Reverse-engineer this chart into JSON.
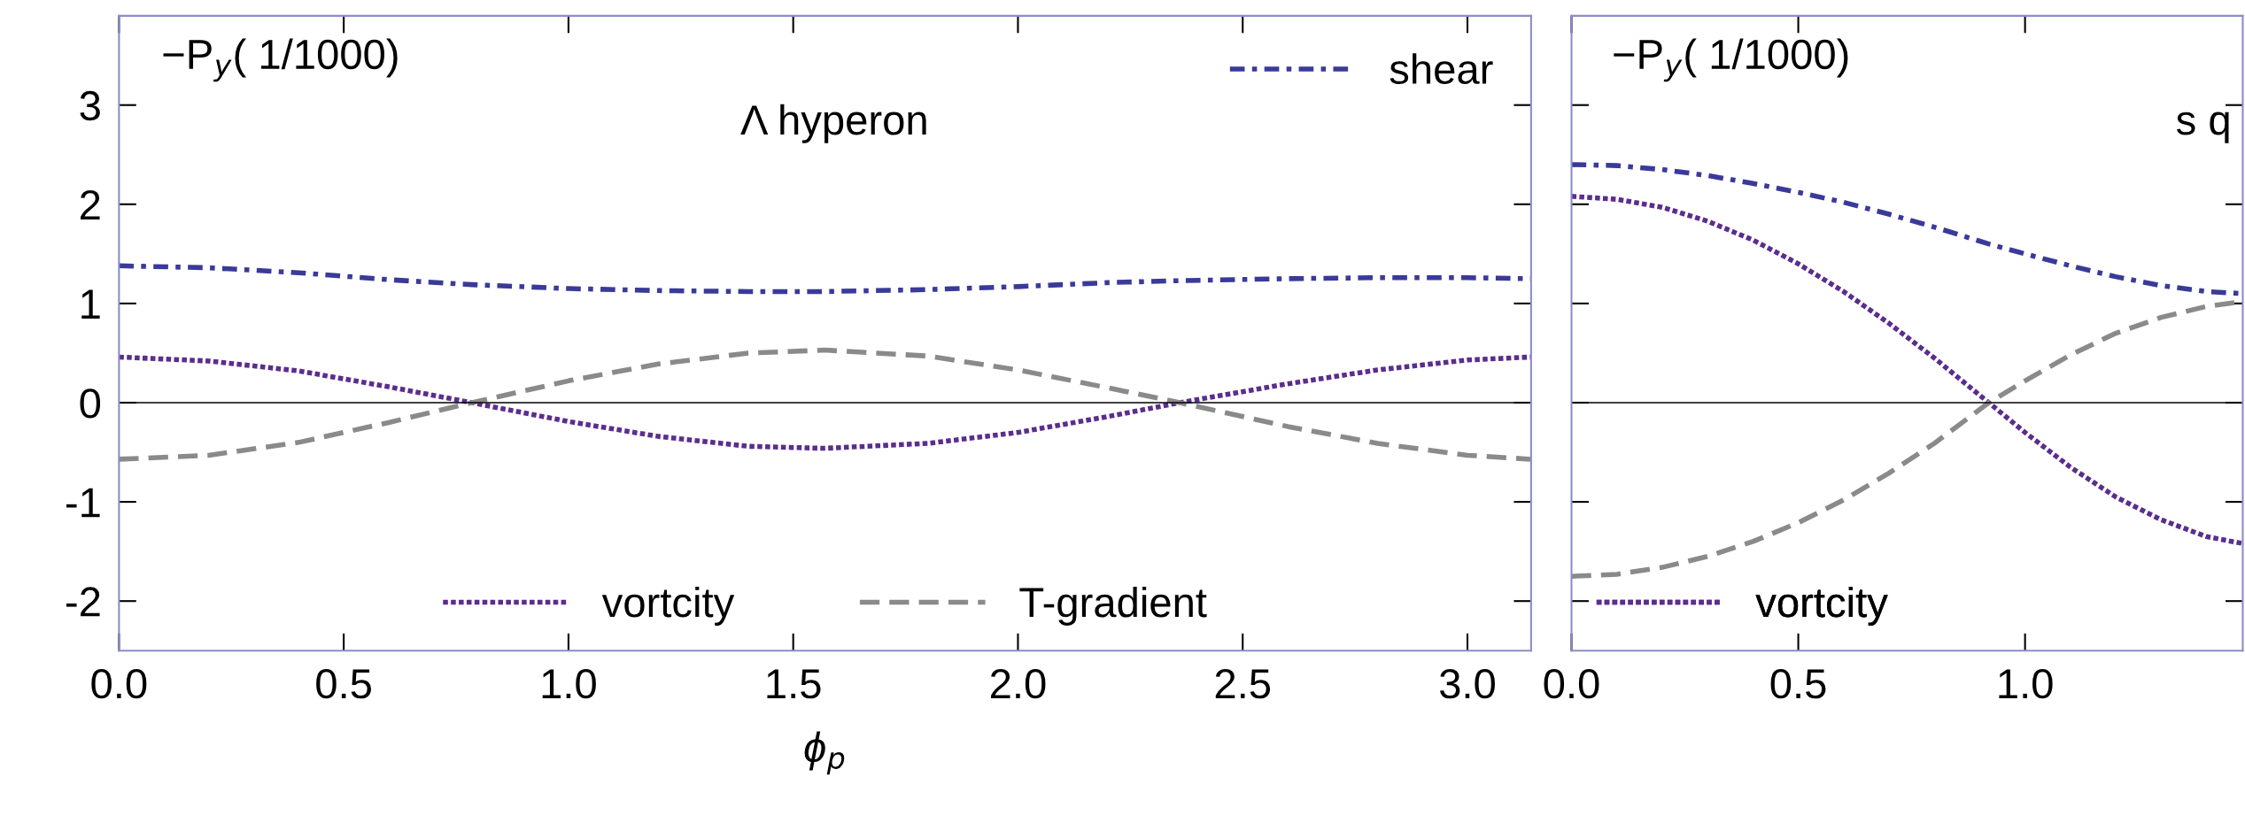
{
  "chart_data": [
    {
      "type": "line",
      "xlabel": "ϕ$_{p}$",
      "annotations": [
        "−P$_{y}$( 1/1000)",
        "Λ hyperon"
      ],
      "xlim": [
        0,
        3.1416
      ],
      "xticks": [
        {
          "value": 0,
          "label": "0.0"
        },
        0.5,
        {
          "value": 1,
          "label": "1.0"
        },
        1.5,
        {
          "value": 2,
          "label": "2.0"
        },
        2.5,
        {
          "value": 3,
          "label": "3.0"
        }
      ],
      "ylim": [
        -2.5,
        3.9
      ],
      "yticks": [
        -2,
        -1,
        0,
        1,
        2,
        3
      ],
      "legend": "bottom",
      "ref_lines": [
        {
          "axis": "y",
          "value": 0,
          "color": "#000000"
        }
      ],
      "series": [
        {
          "name": "vortcity",
          "color": "#5b2d8e",
          "line_style": "dotted",
          "x": [
            0,
            0.2,
            0.4,
            0.6,
            0.785,
            1.0,
            1.2,
            1.4,
            1.57,
            1.8,
            2.0,
            2.2,
            2.36,
            2.6,
            2.8,
            3.0,
            3.14
          ],
          "values": [
            0.46,
            0.42,
            0.32,
            0.16,
            0,
            -0.19,
            -0.34,
            -0.44,
            -0.46,
            -0.41,
            -0.3,
            -0.14,
            0,
            0.19,
            0.33,
            0.43,
            0.46
          ]
        },
        {
          "name": "T-gradient",
          "color": "#8a8a8a",
          "line_style": "dashed",
          "x": [
            0,
            0.2,
            0.4,
            0.6,
            0.785,
            1.0,
            1.2,
            1.4,
            1.57,
            1.8,
            2.0,
            2.2,
            2.36,
            2.6,
            2.8,
            3.0,
            3.14
          ],
          "values": [
            -0.57,
            -0.53,
            -0.4,
            -0.2,
            0,
            0.22,
            0.39,
            0.5,
            0.53,
            0.47,
            0.33,
            0.15,
            0,
            -0.24,
            -0.41,
            -0.53,
            -0.57
          ]
        },
        {
          "name": "shear",
          "color": "#3a3a9a",
          "line_style": "dashdot",
          "x": [
            0,
            0.2,
            0.4,
            0.6,
            0.785,
            1.0,
            1.2,
            1.4,
            1.57,
            1.8,
            2.0,
            2.2,
            2.36,
            2.6,
            2.8,
            3.0,
            3.14
          ],
          "values": [
            1.38,
            1.36,
            1.31,
            1.24,
            1.19,
            1.15,
            1.13,
            1.12,
            1.12,
            1.14,
            1.17,
            1.21,
            1.23,
            1.25,
            1.26,
            1.26,
            1.25
          ]
        }
      ]
    },
    {
      "type": "line",
      "annotations": [
        "−P$_{y}$( 1/1000)",
        "s q"
      ],
      "xlim": [
        0,
        1.48
      ],
      "xticks": [
        {
          "value": 0,
          "label": "0.0"
        },
        0.5,
        {
          "value": 1,
          "label": "1.0"
        }
      ],
      "ylim": [
        -2.5,
        3.9
      ],
      "yticks": [
        {
          "value": -2,
          "label": null
        },
        {
          "value": -1,
          "label": null
        },
        {
          "value": 0,
          "label": null
        },
        {
          "value": 1,
          "label": null
        },
        {
          "value": 2,
          "label": null
        },
        {
          "value": 3,
          "label": null
        }
      ],
      "tick_labels": "x",
      "legend": "bottom",
      "ref_lines": [
        {
          "axis": "y",
          "value": 0,
          "color": "#000000"
        }
      ],
      "series": [
        {
          "name": "vortcity",
          "color": "#5b2d8e",
          "line_style": "dotted",
          "x": [
            0,
            0.1,
            0.2,
            0.3,
            0.4,
            0.5,
            0.6,
            0.7,
            0.8,
            0.92,
            1.0,
            1.1,
            1.2,
            1.3,
            1.4,
            1.48
          ],
          "values": [
            2.08,
            2.05,
            1.97,
            1.83,
            1.64,
            1.4,
            1.12,
            0.8,
            0.45,
            0,
            -0.3,
            -0.65,
            -0.95,
            -1.18,
            -1.35,
            -1.42
          ]
        },
        {
          "color": "#8a8a8a",
          "line_style": "dashed",
          "x": [
            0,
            0.1,
            0.2,
            0.3,
            0.4,
            0.5,
            0.6,
            0.7,
            0.8,
            0.92,
            1.0,
            1.1,
            1.2,
            1.3,
            1.4,
            1.48
          ],
          "values": [
            -1.75,
            -1.73,
            -1.66,
            -1.55,
            -1.4,
            -1.21,
            -0.98,
            -0.71,
            -0.41,
            0,
            0.22,
            0.48,
            0.7,
            0.86,
            0.97,
            1.02
          ]
        },
        {
          "color": "#3a3a9a",
          "line_style": "dashdot",
          "x": [
            0,
            0.1,
            0.2,
            0.3,
            0.4,
            0.5,
            0.6,
            0.7,
            0.8,
            0.92,
            1.0,
            1.1,
            1.2,
            1.3,
            1.4,
            1.48
          ],
          "values": [
            2.4,
            2.39,
            2.35,
            2.29,
            2.21,
            2.12,
            2.02,
            1.9,
            1.77,
            1.6,
            1.5,
            1.38,
            1.27,
            1.18,
            1.12,
            1.1
          ]
        }
      ]
    }
  ]
}
